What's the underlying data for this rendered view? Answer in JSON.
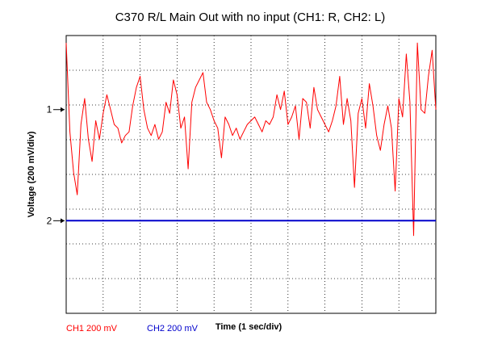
{
  "chart_data": {
    "type": "line",
    "title": "C370 R/L Main Out with no input (CH1: R, CH2: L)",
    "xlabel": "Time (1 sec/div)",
    "ylabel": "Voltage (200 mV/div)",
    "xlim": [
      0,
      10
    ],
    "ylim": [
      -4.5,
      3
    ],
    "grid": true,
    "grid_style": "dotted",
    "markers": [
      {
        "label": "1",
        "y": 1
      },
      {
        "label": "2",
        "y": -2
      }
    ],
    "series": [
      {
        "name": "CH1 200 mV",
        "color": "#ff0000",
        "x": [
          0,
          0.1,
          0.2,
          0.3,
          0.4,
          0.5,
          0.6,
          0.7,
          0.8,
          0.9,
          1.0,
          1.1,
          1.2,
          1.3,
          1.4,
          1.5,
          1.6,
          1.7,
          1.8,
          1.9,
          2.0,
          2.1,
          2.2,
          2.3,
          2.4,
          2.5,
          2.6,
          2.7,
          2.8,
          2.9,
          3.0,
          3.1,
          3.2,
          3.3,
          3.4,
          3.5,
          3.6,
          3.7,
          3.8,
          3.9,
          4.0,
          4.1,
          4.2,
          4.3,
          4.4,
          4.5,
          4.6,
          4.7,
          4.8,
          4.9,
          5.0,
          5.1,
          5.2,
          5.3,
          5.4,
          5.5,
          5.6,
          5.7,
          5.8,
          5.9,
          6.0,
          6.1,
          6.2,
          6.3,
          6.4,
          6.5,
          6.6,
          6.7,
          6.8,
          6.9,
          7.0,
          7.1,
          7.2,
          7.3,
          7.4,
          7.5,
          7.6,
          7.7,
          7.8,
          7.9,
          8.0,
          8.1,
          8.2,
          8.3,
          8.4,
          8.5,
          8.6,
          8.7,
          8.8,
          8.9,
          9.0,
          9.1,
          9.2,
          9.3,
          9.4,
          9.5,
          9.6,
          9.7,
          9.8,
          9.9,
          10.0
        ],
        "values": [
          2.8,
          0.4,
          -0.7,
          -1.3,
          0.6,
          1.3,
          0.2,
          -0.4,
          0.7,
          0.2,
          0.9,
          1.4,
          1.0,
          0.6,
          0.5,
          0.1,
          0.3,
          0.4,
          1.1,
          1.6,
          1.9,
          1.0,
          0.5,
          0.3,
          0.6,
          0.2,
          0.4,
          1.2,
          0.9,
          1.8,
          1.4,
          0.5,
          0.8,
          -0.6,
          1.2,
          1.6,
          1.8,
          2.0,
          1.2,
          1.0,
          0.7,
          0.5,
          -0.3,
          0.8,
          0.6,
          0.3,
          0.5,
          0.2,
          0.4,
          0.6,
          0.7,
          0.8,
          0.6,
          0.4,
          0.7,
          0.6,
          0.8,
          1.4,
          1.0,
          1.5,
          0.6,
          0.8,
          1.1,
          0.2,
          1.3,
          1.2,
          0.5,
          1.6,
          1.0,
          0.8,
          0.6,
          0.4,
          0.7,
          1.1,
          1.9,
          0.6,
          1.3,
          0.7,
          -1.1,
          0.9,
          1.3,
          0.5,
          1.7,
          1.1,
          0.3,
          -0.1,
          0.6,
          1.1,
          0.5,
          -1.2,
          1.3,
          0.8,
          2.5,
          1.2,
          -2.4,
          2.8,
          1.0,
          0.9,
          1.9,
          2.6,
          1.0
        ]
      },
      {
        "name": "CH2 200 mV",
        "color": "#0000cc",
        "x": [
          0,
          10
        ],
        "values": [
          -2.0,
          -2.0
        ]
      }
    ]
  }
}
